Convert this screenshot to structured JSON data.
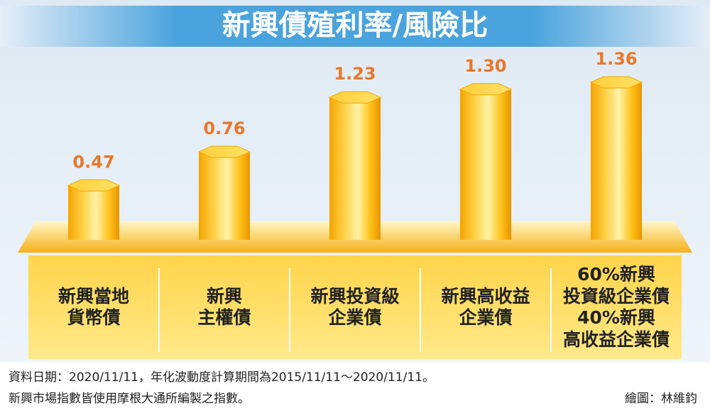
{
  "chart_data": {
    "type": "bar",
    "title": "新興債殖利率/風險比",
    "categories": [
      "新興當地\n貨幣債",
      "新興\n主權債",
      "新興投資級\n企業債",
      "新興高收益\n企業債",
      "60%新興\n投資級企業債\n40%新興\n高收益企業債"
    ],
    "values": [
      0.47,
      0.76,
      1.23,
      1.3,
      1.36
    ],
    "value_labels": [
      "0.47",
      "0.76",
      "1.23",
      "1.30",
      "1.36"
    ],
    "color": "#f7b500",
    "notes": [
      "資料日期：2020/11/11，年化波動度計算期間為2015/11/11～2020/11/11。",
      "新興市場指數皆使用摩根大通所編製之指數。"
    ],
    "credit": "繪圖：林維鈞"
  }
}
